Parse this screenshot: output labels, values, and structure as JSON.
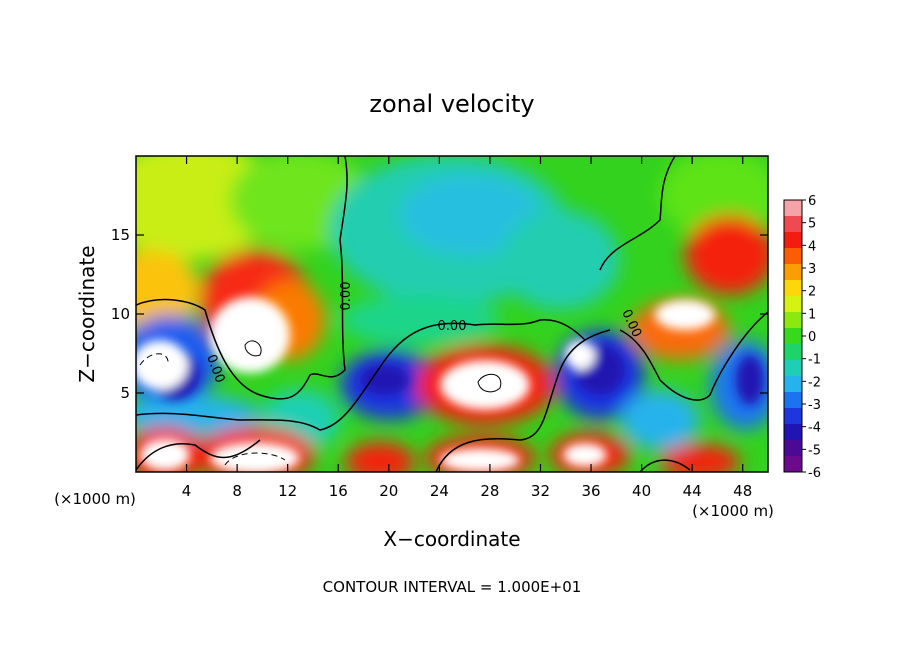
{
  "chart_data": {
    "type": "heatmap",
    "title": "zonal velocity",
    "xlabel": "X−coordinate",
    "ylabel": "Z−coordinate",
    "x_unit_label": "(×1000 m)",
    "z_unit_label": "(×1000 m)",
    "footer": "CONTOUR INTERVAL = 1.000E+01",
    "xlim": [
      0,
      50
    ],
    "ylim": [
      0,
      20
    ],
    "x_ticks": [
      4,
      8,
      12,
      16,
      20,
      24,
      28,
      32,
      36,
      40,
      44,
      48
    ],
    "y_ticks": [
      5,
      10,
      15
    ],
    "colorbar": {
      "ticks": [
        6,
        5,
        4,
        3,
        2,
        1,
        0,
        -1,
        -2,
        -3,
        -4,
        -5,
        -6
      ],
      "range": [
        -6,
        6
      ],
      "colors": [
        "#f4a3a8",
        "#ef4a4f",
        "#f21c11",
        "#fc5d04",
        "#fb9e06",
        "#fcd80b",
        "#d5f213",
        "#8de80f",
        "#37d91e",
        "#1ed36a",
        "#1ecfb5",
        "#26b3ec",
        "#1a74f0",
        "#1e35e0",
        "#2214b2",
        "#4a0a96",
        "#6b0a8c"
      ]
    },
    "contour_labels": [
      "0.00",
      "0.00",
      "0.00",
      "0.00"
    ]
  }
}
